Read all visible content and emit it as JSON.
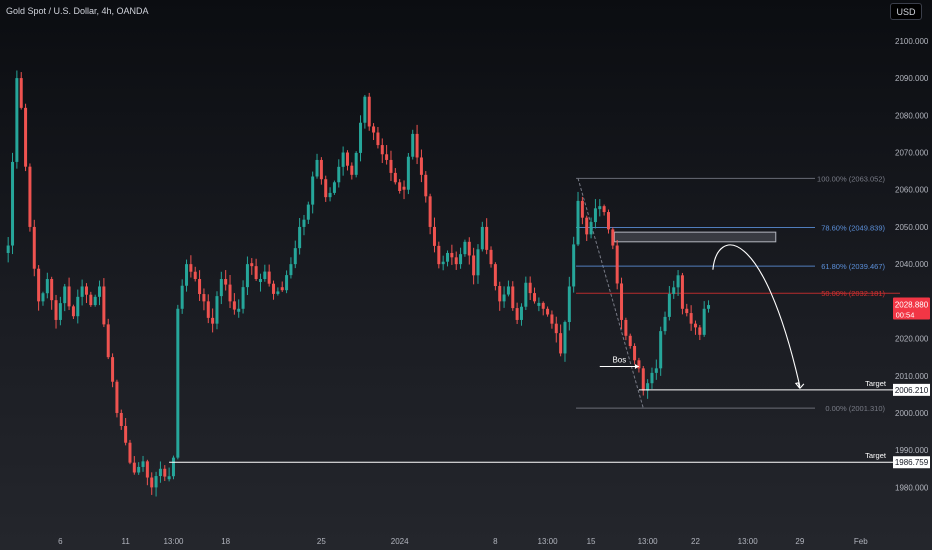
{
  "header": {
    "title": "Gold Spot / U.S. Dollar, 4h, OANDA",
    "currency": "USD"
  },
  "colors": {
    "up": "#26a69a",
    "down": "#ef5350",
    "fib_gray": "#787b86",
    "fib_blue": "#5b8fd9",
    "fib_red": "#d32f2f",
    "price_tag": "#f23645",
    "white": "#ffffff"
  },
  "chart_data": {
    "type": "candlestick",
    "title": "Gold Spot / U.S. Dollar, 4h, OANDA",
    "ylim": [
      1975,
      2104
    ],
    "y_ticks": [
      {
        "value": 2100,
        "label": "2100.000"
      },
      {
        "value": 2090,
        "label": "2090.000"
      },
      {
        "value": 2080,
        "label": "2080.000"
      },
      {
        "value": 2070,
        "label": "2070.000"
      },
      {
        "value": 2060,
        "label": "2060.000"
      },
      {
        "value": 2050,
        "label": "2050.000"
      },
      {
        "value": 2040,
        "label": "2040.000"
      },
      {
        "value": 2030,
        "label": "2030.000"
      },
      {
        "value": 2020,
        "label": "2020.000"
      },
      {
        "value": 2010,
        "label": "2010.000"
      },
      {
        "value": 2000,
        "label": "2000.000"
      },
      {
        "value": 1990,
        "label": "1990.000"
      },
      {
        "value": 1980,
        "label": "1980.000"
      }
    ],
    "x_ticks": [
      {
        "bar": 12,
        "label": "6"
      },
      {
        "bar": 27,
        "label": "11"
      },
      {
        "bar": 38,
        "label": "13:00"
      },
      {
        "bar": 50,
        "label": "18"
      },
      {
        "bar": 72,
        "label": "25"
      },
      {
        "bar": 90,
        "label": "2024"
      },
      {
        "bar": 112,
        "label": "8"
      },
      {
        "bar": 124,
        "label": "13:00"
      },
      {
        "bar": 134,
        "label": "15"
      },
      {
        "bar": 147,
        "label": "13:00"
      },
      {
        "bar": 158,
        "label": "22"
      },
      {
        "bar": 170,
        "label": "13:00"
      },
      {
        "bar": 182,
        "label": "29"
      },
      {
        "bar": 196,
        "label": "Feb"
      }
    ],
    "keyframes": [
      [
        0,
        2045
      ],
      [
        2,
        2090
      ],
      [
        3,
        2082
      ],
      [
        5,
        2050
      ],
      [
        7,
        2030
      ],
      [
        9,
        2036
      ],
      [
        11,
        2025
      ],
      [
        13,
        2034
      ],
      [
        15,
        2026
      ],
      [
        17,
        2034
      ],
      [
        19,
        2029
      ],
      [
        21,
        2034
      ],
      [
        23,
        2015
      ],
      [
        25,
        2000
      ],
      [
        27,
        1992
      ],
      [
        29,
        1984
      ],
      [
        31,
        1987
      ],
      [
        33,
        1980
      ],
      [
        35,
        1985
      ],
      [
        37,
        1983
      ],
      [
        38,
        1988
      ],
      [
        39,
        2028
      ],
      [
        41,
        2040
      ],
      [
        43,
        2036
      ],
      [
        45,
        2030
      ],
      [
        47,
        2024
      ],
      [
        49,
        2036
      ],
      [
        51,
        2030
      ],
      [
        53,
        2028
      ],
      [
        55,
        2040
      ],
      [
        57,
        2036
      ],
      [
        59,
        2038
      ],
      [
        61,
        2032
      ],
      [
        63,
        2033
      ],
      [
        65,
        2040
      ],
      [
        67,
        2050
      ],
      [
        69,
        2056
      ],
      [
        71,
        2068
      ],
      [
        73,
        2058
      ],
      [
        75,
        2062
      ],
      [
        77,
        2070
      ],
      [
        79,
        2064
      ],
      [
        81,
        2078
      ],
      [
        82,
        2085
      ],
      [
        83,
        2077
      ],
      [
        85,
        2072
      ],
      [
        87,
        2068
      ],
      [
        89,
        2062
      ],
      [
        91,
        2060
      ],
      [
        93,
        2075
      ],
      [
        95,
        2064
      ],
      [
        97,
        2050
      ],
      [
        99,
        2040
      ],
      [
        101,
        2043
      ],
      [
        103,
        2040
      ],
      [
        105,
        2046
      ],
      [
        107,
        2037
      ],
      [
        109,
        2050
      ],
      [
        111,
        2040
      ],
      [
        113,
        2030
      ],
      [
        115,
        2034
      ],
      [
        117,
        2025
      ],
      [
        119,
        2035
      ],
      [
        121,
        2030
      ],
      [
        123,
        2028
      ],
      [
        125,
        2024
      ],
      [
        127,
        2016
      ],
      [
        129,
        2034
      ],
      [
        131,
        2057
      ],
      [
        133,
        2048
      ],
      [
        135,
        2055
      ],
      [
        137,
        2054
      ],
      [
        139,
        2045
      ],
      [
        141,
        2025
      ],
      [
        143,
        2018
      ],
      [
        145,
        2012
      ],
      [
        146,
        2006
      ],
      [
        147,
        2008
      ],
      [
        149,
        2012
      ],
      [
        150,
        2022
      ],
      [
        152,
        2032
      ],
      [
        154,
        2037
      ],
      [
        155,
        2028
      ],
      [
        157,
        2024
      ],
      [
        158,
        2023
      ],
      [
        159,
        2021
      ],
      [
        160,
        2028
      ],
      [
        161,
        2029
      ]
    ],
    "fib_levels": [
      {
        "name": "fib-100",
        "value": 2063.052,
        "label": "100.00% (2063.052)",
        "color": "gray"
      },
      {
        "name": "fib-786",
        "value": 2049.839,
        "label": "78.60% (2049.839)",
        "color": "blue"
      },
      {
        "name": "fib-618",
        "value": 2039.467,
        "label": "61.80% (2039.467)",
        "color": "blue"
      },
      {
        "name": "fib-50",
        "value": 2032.181,
        "label": "50.00% (2032.181)",
        "color": "red"
      },
      {
        "name": "fib-0",
        "value": 2001.31,
        "label": "0.00% (2001.310)",
        "color": "gray"
      }
    ],
    "fib_anchor": {
      "from_bar": 131,
      "to_bar": 146,
      "from_price": 2063.052,
      "to_price": 2001.31
    },
    "zone": {
      "from_bar": 132,
      "to_bar": 176,
      "top": 2048.6,
      "bottom": 2046.0
    },
    "bos": {
      "label": "Bos",
      "from_bar": 136,
      "to_bar": 145,
      "price": 2012.5
    },
    "targets": [
      {
        "label": "Target",
        "value": 2006.21,
        "tag": "2006.210",
        "from_bar": 145
      },
      {
        "label": "Target",
        "value": 1986.759,
        "tag": "1986.759",
        "from_bar": 37
      }
    ],
    "current_price": {
      "value": 2028.88,
      "tag": "2028.880",
      "countdown": "00:54"
    },
    "projection": {
      "from_bar": 162,
      "to_bar": 182,
      "start": 2038.5,
      "peak": 2045.0,
      "end": 2006.6
    }
  }
}
